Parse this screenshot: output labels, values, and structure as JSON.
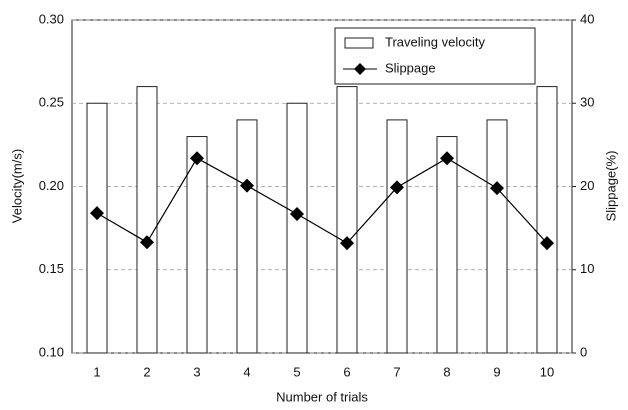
{
  "chart_data": {
    "type": "bar",
    "xlabel": "Number of trials",
    "ylabel": "Velocity(m/s)",
    "y2label": "Slippage(%)",
    "categories": [
      "1",
      "2",
      "3",
      "4",
      "5",
      "6",
      "7",
      "8",
      "9",
      "10"
    ],
    "series": [
      {
        "name": "Traveling velocity",
        "type": "bar",
        "color": "#ffffff",
        "values": [
          0.25,
          0.26,
          0.23,
          0.24,
          0.25,
          0.26,
          0.24,
          0.23,
          0.24,
          0.26
        ]
      },
      {
        "name": "Slippage",
        "type": "line",
        "axis": "y2",
        "color": "#000000",
        "values": [
          16.8,
          13.3,
          23.4,
          20.1,
          16.7,
          13.2,
          19.9,
          23.4,
          19.8,
          13.2
        ]
      }
    ],
    "ylim": [
      0.1,
      0.3
    ],
    "yticks": [
      {
        "value": 0.1,
        "label": "0.10"
      },
      0.15,
      {
        "value": 0.2,
        "label": "0.20"
      },
      0.25,
      {
        "value": 0.3,
        "label": "0.30"
      }
    ],
    "y2lim": [
      0,
      40
    ],
    "y2ticks": [
      0,
      10,
      20,
      30,
      40
    ],
    "grid": true,
    "legend": "upper right"
  }
}
